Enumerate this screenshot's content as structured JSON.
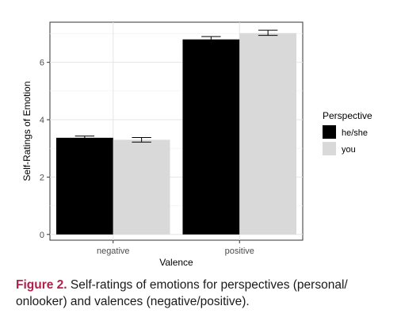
{
  "chart_data": {
    "type": "bar",
    "xlabel": "Valence",
    "ylabel": "Self-Ratings of Emotion",
    "categories": [
      "negative",
      "positive"
    ],
    "ylim": [
      -0.2,
      7.4
    ],
    "yticks": [
      "0",
      "2",
      "4",
      "6"
    ],
    "grid": true,
    "legend": {
      "title": "Perspective",
      "position": "right"
    },
    "series": [
      {
        "name": "he/she",
        "color": "#000000",
        "values": [
          3.37,
          6.8
        ],
        "error_low": [
          3.31,
          6.72
        ],
        "error_high": [
          3.43,
          6.9
        ]
      },
      {
        "name": "you",
        "color": "#d9d9d9",
        "values": [
          3.3,
          7.02
        ],
        "error_low": [
          3.22,
          6.94
        ],
        "error_high": [
          3.38,
          7.12
        ]
      }
    ]
  },
  "caption": {
    "label": "Figure 2.",
    "text": " Self-ratings of emotions for perspectives (personal/ onlooker) and valences (negative/positive)."
  }
}
